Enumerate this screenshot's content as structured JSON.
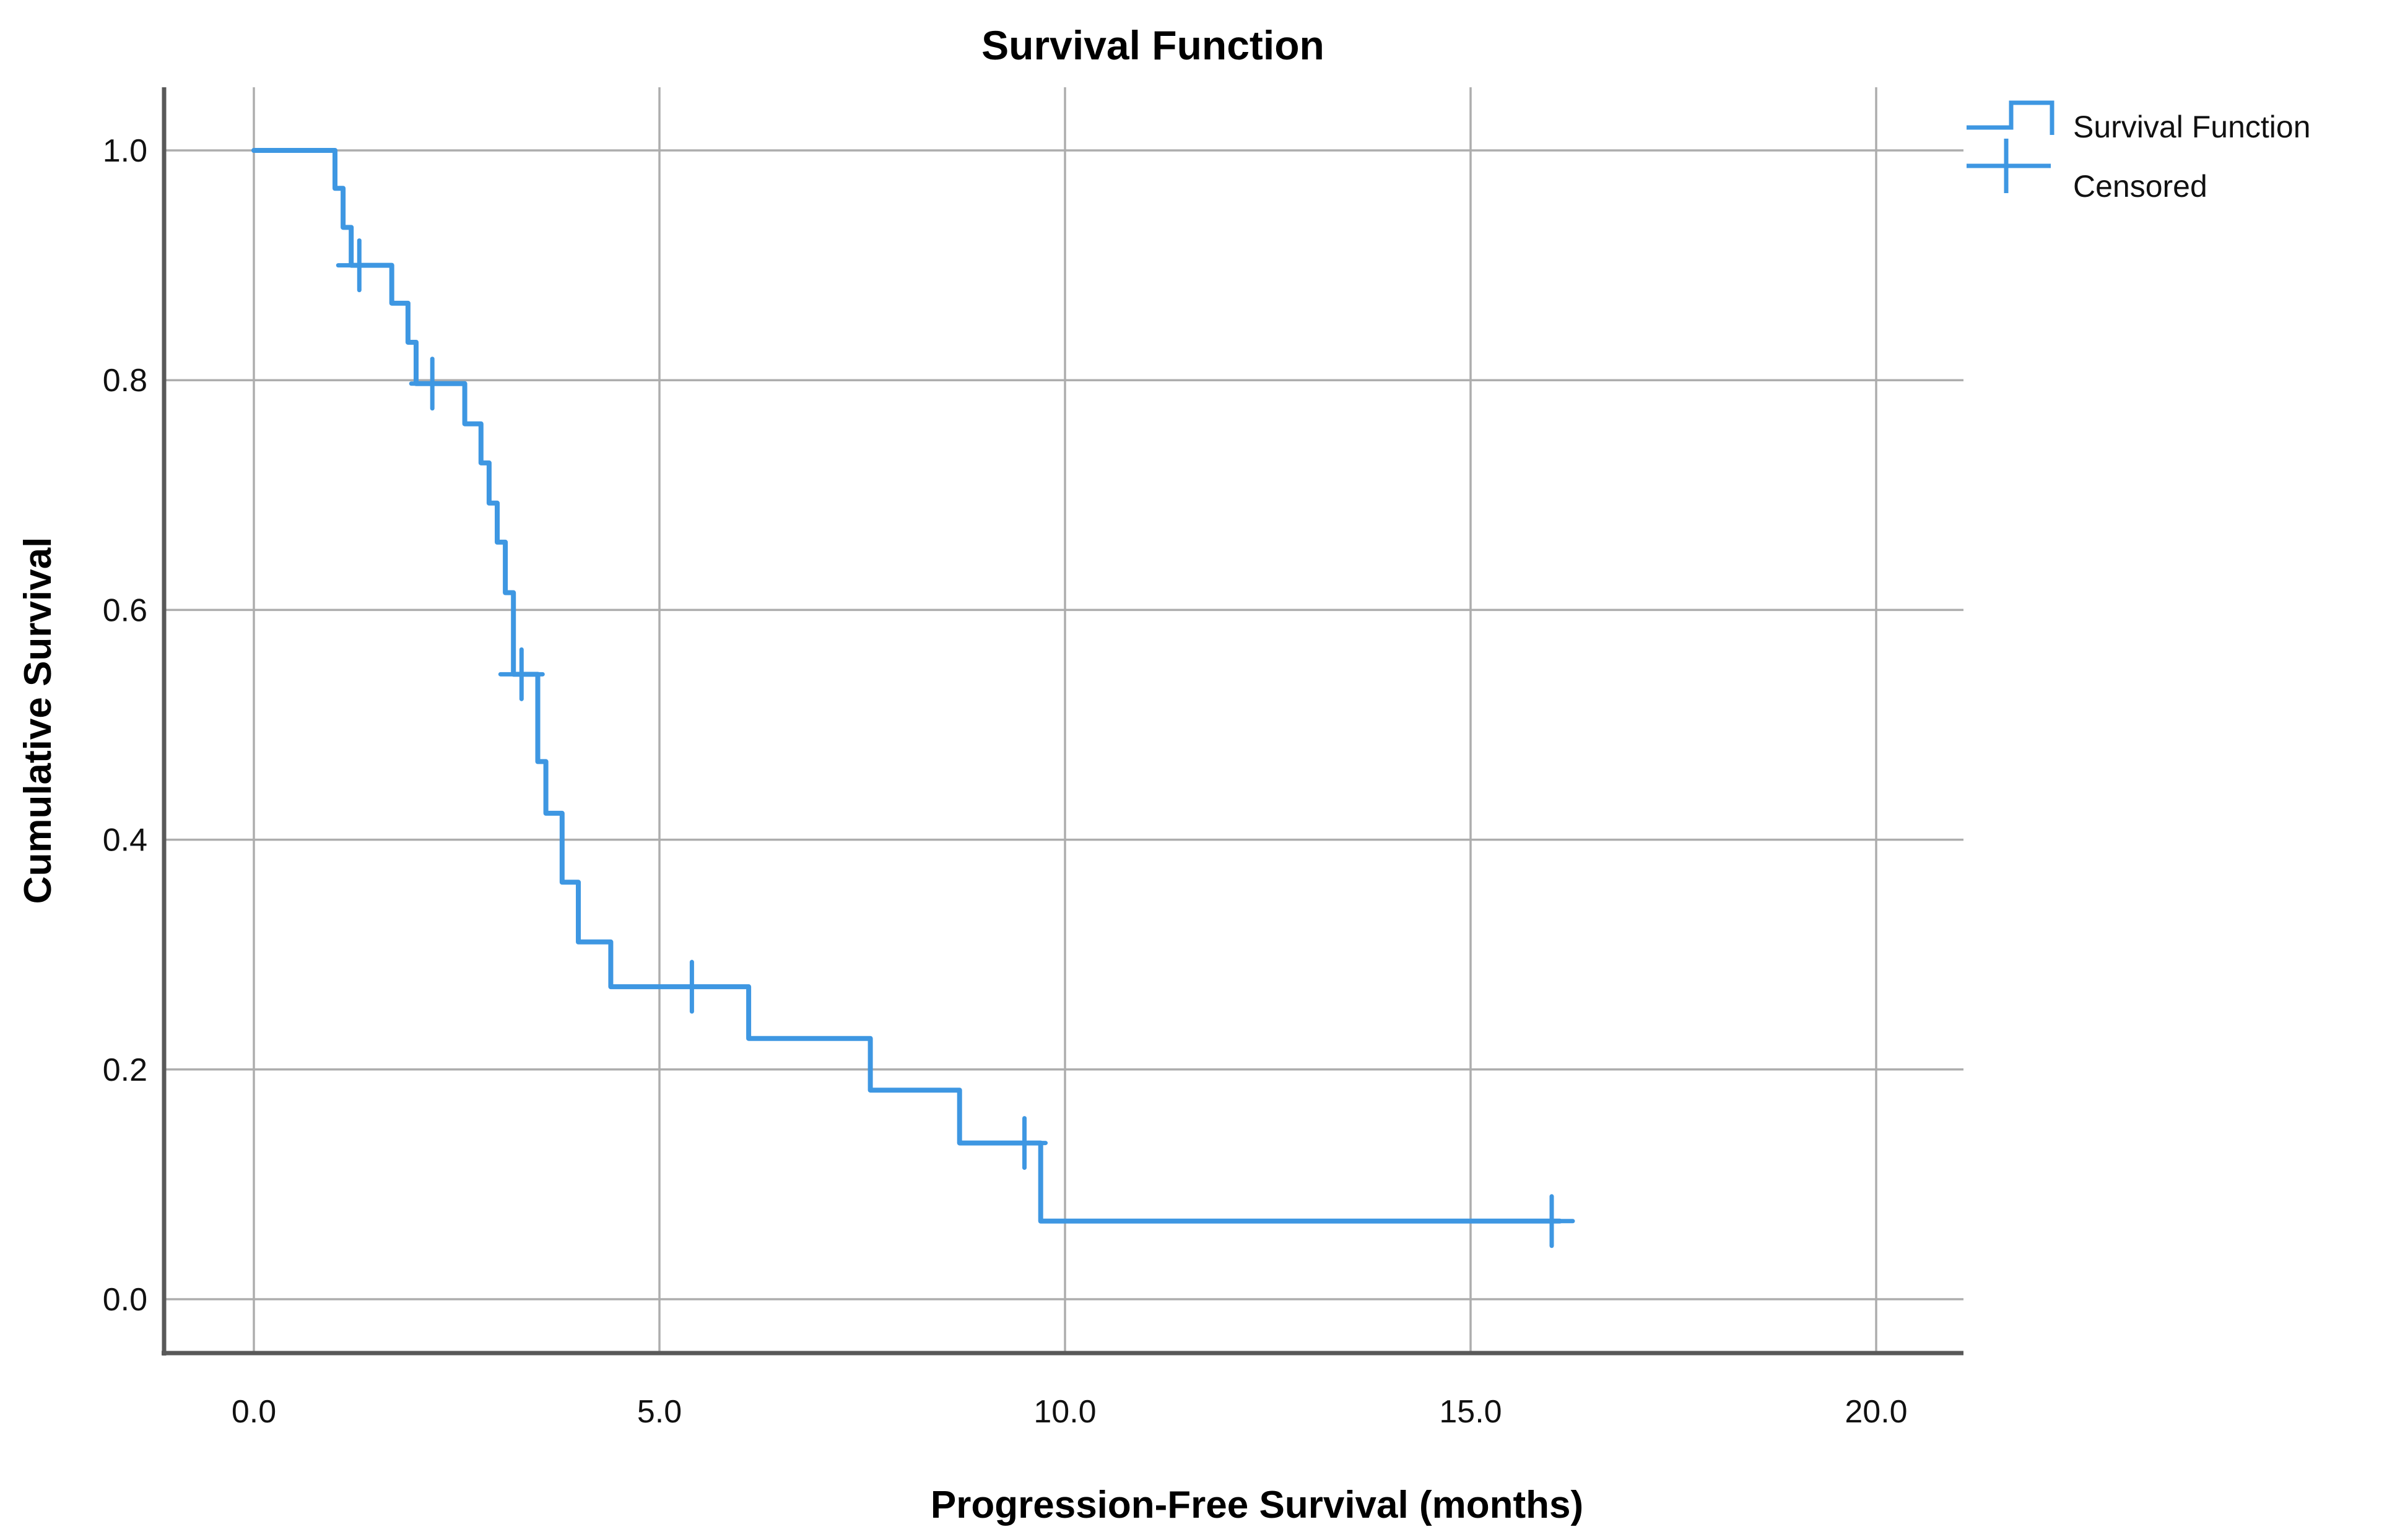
{
  "page": {
    "background": "#FFFFFF"
  },
  "colors": {
    "curve": "#3E97E2",
    "grid": "#ADADAD",
    "frame": "#595959",
    "text": "#000000"
  },
  "chart_data": {
    "type": "line",
    "subtype": "kaplan-meier-step",
    "title": "Survival Function",
    "xlabel": "Progression-Free Survival (months)",
    "ylabel": "Cumulative Survival",
    "grid": true,
    "xlim": [
      -1.1,
      21.1
    ],
    "ylim": [
      -0.05,
      1.05
    ],
    "x_ticks": [
      "0.0",
      "5.0",
      "10.0",
      "15.0",
      "20.0"
    ],
    "x_tick_values": [
      0,
      5,
      10,
      15,
      20
    ],
    "y_ticks": [
      "0.0",
      "0.2",
      "0.4",
      "0.6",
      "0.8",
      "1.0"
    ],
    "y_tick_values": [
      0,
      0.2,
      0.4,
      0.6,
      0.8,
      1.0
    ],
    "legend_position": "top-right-outside",
    "legend": [
      {
        "label": "Survival Function",
        "marker": "step-line"
      },
      {
        "label": "Censored",
        "marker": "plus"
      }
    ],
    "series": [
      {
        "name": "Survival Function",
        "color": "#3E97E2",
        "end_time": 16.1,
        "steps": [
          {
            "t": 0.0,
            "s": 1.0
          },
          {
            "t": 1.0,
            "s": 0.967
          },
          {
            "t": 1.1,
            "s": 0.933
          },
          {
            "t": 1.2,
            "s": 0.9
          },
          {
            "t": 1.7,
            "s": 0.867
          },
          {
            "t": 1.9,
            "s": 0.833
          },
          {
            "t": 2.0,
            "s": 0.797
          },
          {
            "t": 2.6,
            "s": 0.762
          },
          {
            "t": 2.8,
            "s": 0.728
          },
          {
            "t": 2.9,
            "s": 0.693
          },
          {
            "t": 3.0,
            "s": 0.659
          },
          {
            "t": 3.1,
            "s": 0.615
          },
          {
            "t": 3.2,
            "s": 0.544
          },
          {
            "t": 3.5,
            "s": 0.468
          },
          {
            "t": 3.6,
            "s": 0.423
          },
          {
            "t": 3.8,
            "s": 0.363
          },
          {
            "t": 4.0,
            "s": 0.311
          },
          {
            "t": 4.4,
            "s": 0.272
          },
          {
            "t": 6.1,
            "s": 0.227
          },
          {
            "t": 7.6,
            "s": 0.182
          },
          {
            "t": 8.7,
            "s": 0.136
          },
          {
            "t": 9.7,
            "s": 0.068
          }
        ]
      }
    ],
    "censored_points": [
      {
        "t": 1.3,
        "s": 0.9
      },
      {
        "t": 2.2,
        "s": 0.797
      },
      {
        "t": 3.3,
        "s": 0.544
      },
      {
        "t": 5.4,
        "s": 0.272
      },
      {
        "t": 9.5,
        "s": 0.136
      },
      {
        "t": 16.0,
        "s": 0.068
      }
    ]
  }
}
